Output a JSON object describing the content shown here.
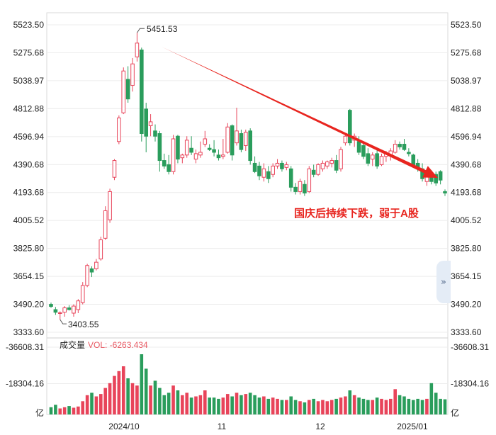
{
  "chart_data": {
    "type": "candlestick",
    "price_axis": {
      "ticks": [
        "5523.50",
        "5275.68",
        "5038.97",
        "4812.88",
        "4596.94",
        "4390.68",
        "4193.68",
        "4005.52",
        "3825.80",
        "3654.15",
        "3490.20",
        "3333.60"
      ],
      "ylim": [
        3333.6,
        5523.5
      ],
      "scale": "log"
    },
    "volume_axis": {
      "ticks": [
        "-36608.31",
        "-18304.16",
        "亿"
      ]
    },
    "x_ticks": [
      "2024/10",
      "11",
      "12",
      "2025/01"
    ],
    "high_label": "5451.53",
    "low_label": "3403.55",
    "volume_title": "成交量",
    "volume_value": "VOL: -6263.434",
    "annotation": "国庆后持续下跌，弱于A股",
    "colors": {
      "up": "#e8445a",
      "down": "#2a9d5c",
      "arrow": "#e8251f"
    },
    "candles": [
      {
        "o": 3490,
        "h": 3500,
        "l": 3470,
        "c": 3478
      },
      {
        "o": 3460,
        "h": 3475,
        "l": 3430,
        "c": 3445
      },
      {
        "o": 3440,
        "h": 3450,
        "l": 3403.55,
        "c": 3442
      },
      {
        "o": 3445,
        "h": 3480,
        "l": 3420,
        "c": 3470
      },
      {
        "o": 3470,
        "h": 3485,
        "l": 3455,
        "c": 3460
      },
      {
        "o": 3440,
        "h": 3490,
        "l": 3420,
        "c": 3480
      },
      {
        "o": 3460,
        "h": 3520,
        "l": 3440,
        "c": 3510
      },
      {
        "o": 3500,
        "h": 3620,
        "l": 3490,
        "c": 3600
      },
      {
        "o": 3600,
        "h": 3730,
        "l": 3590,
        "c": 3720
      },
      {
        "o": 3700,
        "h": 3715,
        "l": 3650,
        "c": 3680
      },
      {
        "o": 3700,
        "h": 3760,
        "l": 3690,
        "c": 3740
      },
      {
        "o": 3760,
        "h": 3900,
        "l": 3750,
        "c": 3880
      },
      {
        "o": 3890,
        "h": 4100,
        "l": 3880,
        "c": 4070
      },
      {
        "o": 4010,
        "h": 4220,
        "l": 3990,
        "c": 4200
      },
      {
        "o": 4300,
        "h": 4430,
        "l": 4280,
        "c": 4420
      },
      {
        "o": 4560,
        "h": 4760,
        "l": 4540,
        "c": 4740
      },
      {
        "o": 4780,
        "h": 5150,
        "l": 4770,
        "c": 5120
      },
      {
        "o": 5050,
        "h": 5160,
        "l": 4860,
        "c": 4890
      },
      {
        "o": 5000,
        "h": 5230,
        "l": 4950,
        "c": 5180
      },
      {
        "o": 5240,
        "h": 5451.53,
        "l": 5200,
        "c": 5360
      },
      {
        "o": 5300,
        "h": 5320,
        "l": 4560,
        "c": 4620
      },
      {
        "o": 4810,
        "h": 4860,
        "l": 4480,
        "c": 4600
      },
      {
        "o": 4680,
        "h": 4770,
        "l": 4600,
        "c": 4710
      },
      {
        "o": 4640,
        "h": 4690,
        "l": 4560,
        "c": 4600
      },
      {
        "o": 4620,
        "h": 4640,
        "l": 4340,
        "c": 4420
      },
      {
        "o": 4420,
        "h": 4470,
        "l": 4360,
        "c": 4380
      },
      {
        "o": 4390,
        "h": 4460,
        "l": 4320,
        "c": 4340
      },
      {
        "o": 4340,
        "h": 4610,
        "l": 4320,
        "c": 4580
      },
      {
        "o": 4600,
        "h": 4610,
        "l": 4400,
        "c": 4430
      },
      {
        "o": 4440,
        "h": 4470,
        "l": 4400,
        "c": 4460
      },
      {
        "o": 4460,
        "h": 4600,
        "l": 4440,
        "c": 4570
      },
      {
        "o": 4510,
        "h": 4600,
        "l": 4460,
        "c": 4480
      },
      {
        "o": 4430,
        "h": 4500,
        "l": 4400,
        "c": 4470
      },
      {
        "o": 4460,
        "h": 4560,
        "l": 4440,
        "c": 4480
      },
      {
        "o": 4540,
        "h": 4640,
        "l": 4520,
        "c": 4580
      },
      {
        "o": 4510,
        "h": 4540,
        "l": 4490,
        "c": 4500
      },
      {
        "o": 4500,
        "h": 4570,
        "l": 4450,
        "c": 4480
      },
      {
        "o": 4460,
        "h": 4500,
        "l": 4420,
        "c": 4440
      },
      {
        "o": 4450,
        "h": 4580,
        "l": 4430,
        "c": 4460
      },
      {
        "o": 4480,
        "h": 4700,
        "l": 4470,
        "c": 4670
      },
      {
        "o": 4680,
        "h": 4690,
        "l": 4420,
        "c": 4460
      },
      {
        "o": 4550,
        "h": 4820,
        "l": 4530,
        "c": 4640
      },
      {
        "o": 4620,
        "h": 4650,
        "l": 4480,
        "c": 4500
      },
      {
        "o": 4530,
        "h": 4650,
        "l": 4490,
        "c": 4630
      },
      {
        "o": 4640,
        "h": 4660,
        "l": 4390,
        "c": 4420
      },
      {
        "o": 4400,
        "h": 4450,
        "l": 4330,
        "c": 4340
      },
      {
        "o": 4380,
        "h": 4410,
        "l": 4280,
        "c": 4310
      },
      {
        "o": 4300,
        "h": 4400,
        "l": 4270,
        "c": 4360
      },
      {
        "o": 4340,
        "h": 4380,
        "l": 4260,
        "c": 4290
      },
      {
        "o": 4320,
        "h": 4400,
        "l": 4300,
        "c": 4380
      },
      {
        "o": 4380,
        "h": 4430,
        "l": 4360,
        "c": 4400
      },
      {
        "o": 4400,
        "h": 4420,
        "l": 4340,
        "c": 4360
      },
      {
        "o": 4370,
        "h": 4410,
        "l": 4350,
        "c": 4390
      },
      {
        "o": 4360,
        "h": 4380,
        "l": 4200,
        "c": 4230
      },
      {
        "o": 4230,
        "h": 4260,
        "l": 4180,
        "c": 4200
      },
      {
        "o": 4200,
        "h": 4290,
        "l": 4180,
        "c": 4270
      },
      {
        "o": 4250,
        "h": 4280,
        "l": 4170,
        "c": 4190
      },
      {
        "o": 4200,
        "h": 4380,
        "l": 4190,
        "c": 4360
      },
      {
        "o": 4350,
        "h": 4390,
        "l": 4300,
        "c": 4320
      },
      {
        "o": 4320,
        "h": 4400,
        "l": 4310,
        "c": 4390
      },
      {
        "o": 4360,
        "h": 4420,
        "l": 4340,
        "c": 4400
      },
      {
        "o": 4380,
        "h": 4420,
        "l": 4360,
        "c": 4410
      },
      {
        "o": 4400,
        "h": 4440,
        "l": 4370,
        "c": 4420
      },
      {
        "o": 4420,
        "h": 4460,
        "l": 4330,
        "c": 4350
      },
      {
        "o": 4360,
        "h": 4520,
        "l": 4340,
        "c": 4500
      },
      {
        "o": 4550,
        "h": 4620,
        "l": 4530,
        "c": 4600
      },
      {
        "o": 4800,
        "h": 4810,
        "l": 4530,
        "c": 4550
      },
      {
        "o": 4570,
        "h": 4620,
        "l": 4520,
        "c": 4600
      },
      {
        "o": 4560,
        "h": 4600,
        "l": 4460,
        "c": 4480
      },
      {
        "o": 4530,
        "h": 4560,
        "l": 4430,
        "c": 4450
      },
      {
        "o": 4470,
        "h": 4510,
        "l": 4380,
        "c": 4400
      },
      {
        "o": 4430,
        "h": 4480,
        "l": 4380,
        "c": 4460
      },
      {
        "o": 4470,
        "h": 4500,
        "l": 4360,
        "c": 4380
      },
      {
        "o": 4390,
        "h": 4470,
        "l": 4380,
        "c": 4450
      },
      {
        "o": 4450,
        "h": 4490,
        "l": 4410,
        "c": 4470
      },
      {
        "o": 4460,
        "h": 4510,
        "l": 4420,
        "c": 4490
      },
      {
        "o": 4480,
        "h": 4570,
        "l": 4470,
        "c": 4540
      },
      {
        "o": 4540,
        "h": 4560,
        "l": 4500,
        "c": 4520
      },
      {
        "o": 4540,
        "h": 4580,
        "l": 4490,
        "c": 4500
      },
      {
        "o": 4480,
        "h": 4510,
        "l": 4450,
        "c": 4470
      },
      {
        "o": 4460,
        "h": 4470,
        "l": 4370,
        "c": 4390
      },
      {
        "o": 4400,
        "h": 4430,
        "l": 4340,
        "c": 4360
      },
      {
        "o": 4360,
        "h": 4400,
        "l": 4270,
        "c": 4290
      },
      {
        "o": 4270,
        "h": 4330,
        "l": 4240,
        "c": 4310
      },
      {
        "o": 4310,
        "h": 4350,
        "l": 4250,
        "c": 4270
      },
      {
        "o": 4320,
        "h": 4340,
        "l": 4240,
        "c": 4260
      },
      {
        "o": 4340,
        "h": 4350,
        "l": 4250,
        "c": 4280
      },
      {
        "o": 4200,
        "h": 4215,
        "l": 4170,
        "c": 4190
      }
    ],
    "volume_values": [
      -3,
      -4,
      -2.5,
      -3,
      -3.5,
      -2.8,
      -3.3,
      -5.5,
      -8,
      -9,
      -7.5,
      -8.5,
      -11,
      -13,
      -16,
      -18,
      -20,
      -15,
      -13,
      -12,
      -25,
      -19,
      -12,
      -14,
      -11,
      -8,
      -9,
      -12,
      -10,
      -8,
      -9,
      -7,
      -7.5,
      -8,
      -10,
      -7,
      -7,
      -6.5,
      -7,
      -8.5,
      -7.5,
      -9,
      -8,
      -8.5,
      -9,
      -8,
      -7,
      -7.5,
      -6.5,
      -7,
      -6.5,
      -6,
      -6,
      -7.5,
      -6,
      -5.5,
      -5,
      -6,
      -6.5,
      -5.5,
      -6,
      -5.5,
      -6,
      -6.5,
      -7,
      -7.5,
      -10,
      -8,
      -7,
      -6.5,
      -6,
      -6,
      -7,
      -6.5,
      -6,
      -6.5,
      -10.5,
      -8,
      -7.5,
      -6.5,
      -6,
      -6.5,
      -6,
      -6.5,
      -13,
      -9,
      -6.5,
      -6.3
    ],
    "volume_min": -36608.31
  }
}
